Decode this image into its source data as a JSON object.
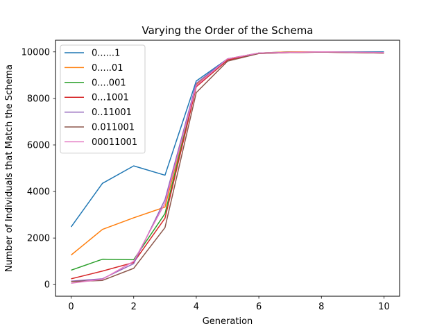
{
  "chart_data": {
    "type": "line",
    "title": "Varying the Order of the Schema",
    "xlabel": "Generation",
    "ylabel": "Number of Individuals that Match the Schema",
    "xlim": [
      -0.5,
      10.5
    ],
    "ylim": [
      -500,
      10500
    ],
    "xticks": [
      0,
      2,
      4,
      6,
      8,
      10
    ],
    "yticks": [
      0,
      2000,
      4000,
      6000,
      8000,
      10000
    ],
    "grid": false,
    "legend_position": "upper-left",
    "x": [
      0,
      1,
      2,
      3,
      4,
      5,
      6,
      7,
      8,
      9,
      10
    ],
    "series": [
      {
        "name": "0......1",
        "color": "#1f77b4",
        "values": [
          2480,
          4350,
          5100,
          4700,
          8750,
          9700,
          9950,
          10000,
          10000,
          10000,
          10000
        ]
      },
      {
        "name": "0.....01",
        "color": "#ff7f0e",
        "values": [
          1270,
          2370,
          2870,
          3330,
          8600,
          9700,
          9950,
          10000,
          10000,
          9980,
          9960
        ]
      },
      {
        "name": "0....001",
        "color": "#2ca02c",
        "values": [
          620,
          1090,
          1070,
          3050,
          8550,
          9650,
          9950,
          9980,
          9990,
          9980,
          9960
        ]
      },
      {
        "name": "0...1001",
        "color": "#d62728",
        "values": [
          250,
          580,
          950,
          2850,
          8500,
          9650,
          9930,
          9970,
          9990,
          9970,
          9950
        ]
      },
      {
        "name": "0..11001",
        "color": "#9467bd",
        "values": [
          150,
          250,
          900,
          3650,
          8650,
          9700,
          9950,
          9980,
          10000,
          9980,
          9960
        ]
      },
      {
        "name": "0.011001",
        "color": "#8c564b",
        "values": [
          130,
          180,
          700,
          2450,
          8250,
          9600,
          9930,
          9970,
          9990,
          9970,
          9950
        ]
      },
      {
        "name": "00011001",
        "color": "#e377c2",
        "values": [
          60,
          230,
          1000,
          3500,
          8550,
          9700,
          9950,
          9980,
          10000,
          9990,
          9970
        ]
      }
    ]
  }
}
